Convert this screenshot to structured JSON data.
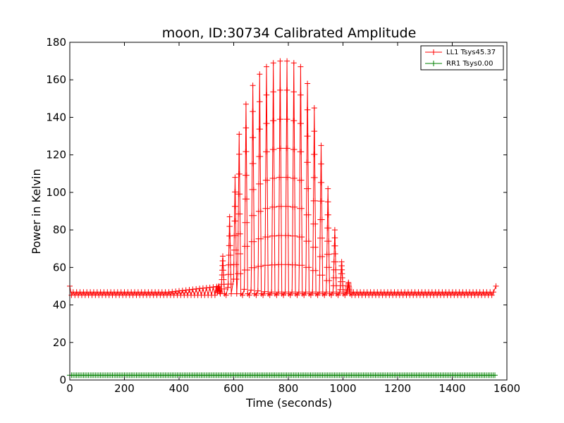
{
  "chart_data": {
    "type": "line",
    "title": "moon, ID:30734 Calibrated Amplitude",
    "xlabel": "Time (seconds)",
    "ylabel": "Power in Kelvin",
    "xlim": [
      0,
      1600
    ],
    "ylim": [
      0,
      180
    ],
    "xticks": [
      0,
      200,
      400,
      600,
      800,
      1000,
      1200,
      1400,
      1600
    ],
    "yticks": [
      0,
      20,
      40,
      60,
      80,
      100,
      120,
      140,
      160,
      180
    ],
    "grid": false,
    "legend_position": "top-right",
    "series": [
      {
        "name": "LL1 Tsys45.37",
        "color": "#ff0000",
        "marker": "+",
        "x_range": [
          0,
          1560
        ],
        "baseline": 46,
        "endpoint_values": [
          50,
          50
        ],
        "peaks": [
          {
            "x": 545,
            "y": 50
          },
          {
            "x": 560,
            "y": 66
          },
          {
            "x": 585,
            "y": 87
          },
          {
            "x": 605,
            "y": 108
          },
          {
            "x": 620,
            "y": 131
          },
          {
            "x": 645,
            "y": 147
          },
          {
            "x": 670,
            "y": 157
          },
          {
            "x": 695,
            "y": 163
          },
          {
            "x": 720,
            "y": 167
          },
          {
            "x": 745,
            "y": 169
          },
          {
            "x": 770,
            "y": 170
          },
          {
            "x": 795,
            "y": 170
          },
          {
            "x": 820,
            "y": 169
          },
          {
            "x": 845,
            "y": 167
          },
          {
            "x": 870,
            "y": 158
          },
          {
            "x": 895,
            "y": 145
          },
          {
            "x": 920,
            "y": 125
          },
          {
            "x": 945,
            "y": 102
          },
          {
            "x": 970,
            "y": 80
          },
          {
            "x": 995,
            "y": 63
          },
          {
            "x": 1020,
            "y": 52
          }
        ]
      },
      {
        "name": "RR1 Tsys0.00",
        "color": "#008000",
        "marker": "+",
        "x_range": [
          0,
          1560
        ],
        "values_constant": 2.5
      }
    ]
  }
}
